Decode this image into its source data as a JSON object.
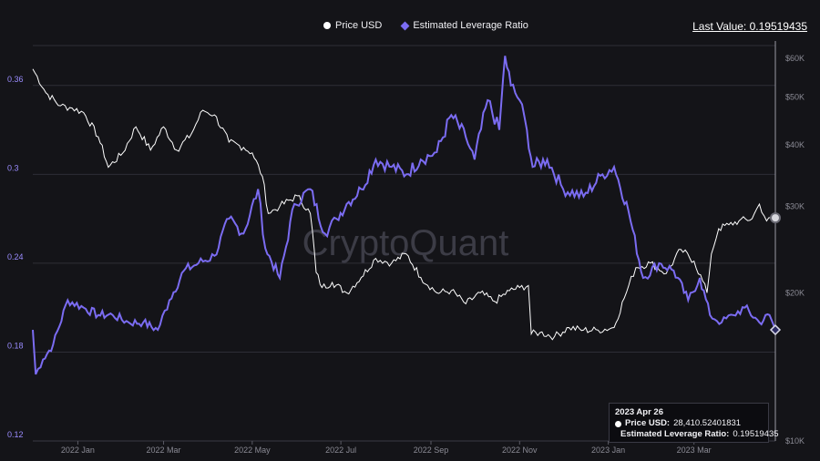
{
  "legend": {
    "price_label": "Price USD",
    "leverage_label": "Estimated Leverage Ratio"
  },
  "last_value": "Last Value: 0.19519435",
  "watermark": "CryptoQuant",
  "tooltip": {
    "date": "2023 Apr 26",
    "price_key": "Price USD:",
    "price_value": "28,410.52401831",
    "leverage_key": "Estimated Leverage Ratio:",
    "leverage_value": "0.19519435"
  },
  "colors": {
    "background": "#141418",
    "price": "#ffffff",
    "leverage": "#7b6cf2",
    "grid": "#2e2e36"
  },
  "chart_data": {
    "type": "line",
    "x_axis": {
      "type": "date",
      "ticks": [
        "2022 Jan",
        "2022 Mar",
        "2022 May",
        "2022 Jul",
        "2022 Sep",
        "2022 Nov",
        "2023 Jan",
        "2023 Mar"
      ]
    },
    "y_left": {
      "label": "",
      "range": [
        0.12,
        0.39
      ],
      "ticks": [
        "0.36",
        "0.3",
        "0.24",
        "0.18",
        "0.12"
      ]
    },
    "y_right": {
      "label": "",
      "scale": "log",
      "range": [
        10000,
        65000
      ],
      "ticks": [
        "$60K",
        "$50K",
        "$40K",
        "$30K",
        "$20K",
        "$10K"
      ]
    },
    "grid": true,
    "legend_position": "top-center",
    "series": [
      {
        "name": "Price USD",
        "axis": "right",
        "color": "#ffffff",
        "x": [
          "2021-12-01",
          "2021-12-10",
          "2021-12-20",
          "2021-12-28",
          "2022-01-05",
          "2022-01-15",
          "2022-01-22",
          "2022-02-01",
          "2022-02-10",
          "2022-02-20",
          "2022-03-01",
          "2022-03-10",
          "2022-03-20",
          "2022-03-28",
          "2022-04-05",
          "2022-04-15",
          "2022-04-25",
          "2022-05-01",
          "2022-05-08",
          "2022-05-12",
          "2022-05-20",
          "2022-06-01",
          "2022-06-10",
          "2022-06-14",
          "2022-06-18",
          "2022-06-25",
          "2022-07-05",
          "2022-07-15",
          "2022-07-25",
          "2022-08-05",
          "2022-08-15",
          "2022-08-25",
          "2022-09-05",
          "2022-09-15",
          "2022-09-25",
          "2022-10-05",
          "2022-10-15",
          "2022-10-25",
          "2022-11-01",
          "2022-11-07",
          "2022-11-09",
          "2022-11-15",
          "2022-11-25",
          "2022-12-05",
          "2022-12-15",
          "2022-12-25",
          "2023-01-05",
          "2023-01-12",
          "2023-01-20",
          "2023-01-30",
          "2023-02-10",
          "2023-02-20",
          "2023-03-01",
          "2023-03-10",
          "2023-03-13",
          "2023-03-18",
          "2023-03-25",
          "2023-04-01",
          "2023-04-10",
          "2023-04-15",
          "2023-04-20",
          "2023-04-26"
        ],
        "values": [
          57000,
          51000,
          48000,
          47500,
          46500,
          41500,
          36000,
          38500,
          43500,
          39000,
          43500,
          39000,
          42000,
          47000,
          46000,
          40500,
          39500,
          38500,
          34500,
          29000,
          30000,
          31500,
          29000,
          22000,
          20500,
          21000,
          20000,
          21500,
          23500,
          23000,
          24000,
          21500,
          20000,
          20200,
          19000,
          20000,
          19200,
          20200,
          20500,
          20700,
          16500,
          16600,
          16300,
          17000,
          16800,
          16800,
          17000,
          19500,
          22500,
          23000,
          21900,
          24500,
          23200,
          20000,
          24000,
          27000,
          27500,
          28000,
          28300,
          30300,
          28000,
          28410
        ]
      },
      {
        "name": "Estimated Leverage Ratio",
        "axis": "left",
        "color": "#7b6cf2",
        "x": [
          "2021-12-01",
          "2021-12-03",
          "2021-12-08",
          "2021-12-15",
          "2021-12-25",
          "2022-01-05",
          "2022-01-15",
          "2022-01-25",
          "2022-02-05",
          "2022-02-15",
          "2022-02-25",
          "2022-03-05",
          "2022-03-15",
          "2022-03-25",
          "2022-04-05",
          "2022-04-15",
          "2022-04-25",
          "2022-05-05",
          "2022-05-10",
          "2022-05-20",
          "2022-05-30",
          "2022-06-10",
          "2022-06-20",
          "2022-06-28",
          "2022-07-05",
          "2022-07-15",
          "2022-07-25",
          "2022-08-05",
          "2022-08-15",
          "2022-08-25",
          "2022-09-05",
          "2022-09-15",
          "2022-09-25",
          "2022-10-01",
          "2022-10-10",
          "2022-10-18",
          "2022-10-22",
          "2022-10-26",
          "2022-11-01",
          "2022-11-06",
          "2022-11-10",
          "2022-11-20",
          "2022-12-01",
          "2022-12-15",
          "2022-12-28",
          "2023-01-05",
          "2023-01-15",
          "2023-01-25",
          "2023-02-05",
          "2023-02-15",
          "2023-02-25",
          "2023-03-05",
          "2023-03-12",
          "2023-03-20",
          "2023-03-28",
          "2023-04-05",
          "2023-04-15",
          "2023-04-22",
          "2023-04-26"
        ],
        "values": [
          0.195,
          0.165,
          0.175,
          0.185,
          0.215,
          0.21,
          0.205,
          0.205,
          0.2,
          0.2,
          0.195,
          0.215,
          0.235,
          0.24,
          0.245,
          0.27,
          0.26,
          0.29,
          0.25,
          0.23,
          0.28,
          0.29,
          0.26,
          0.27,
          0.28,
          0.29,
          0.31,
          0.305,
          0.3,
          0.31,
          0.315,
          0.34,
          0.325,
          0.31,
          0.35,
          0.33,
          0.38,
          0.36,
          0.35,
          0.33,
          0.305,
          0.31,
          0.29,
          0.285,
          0.3,
          0.305,
          0.275,
          0.23,
          0.24,
          0.235,
          0.215,
          0.23,
          0.205,
          0.2,
          0.205,
          0.21,
          0.2,
          0.205,
          0.195
        ]
      }
    ]
  }
}
